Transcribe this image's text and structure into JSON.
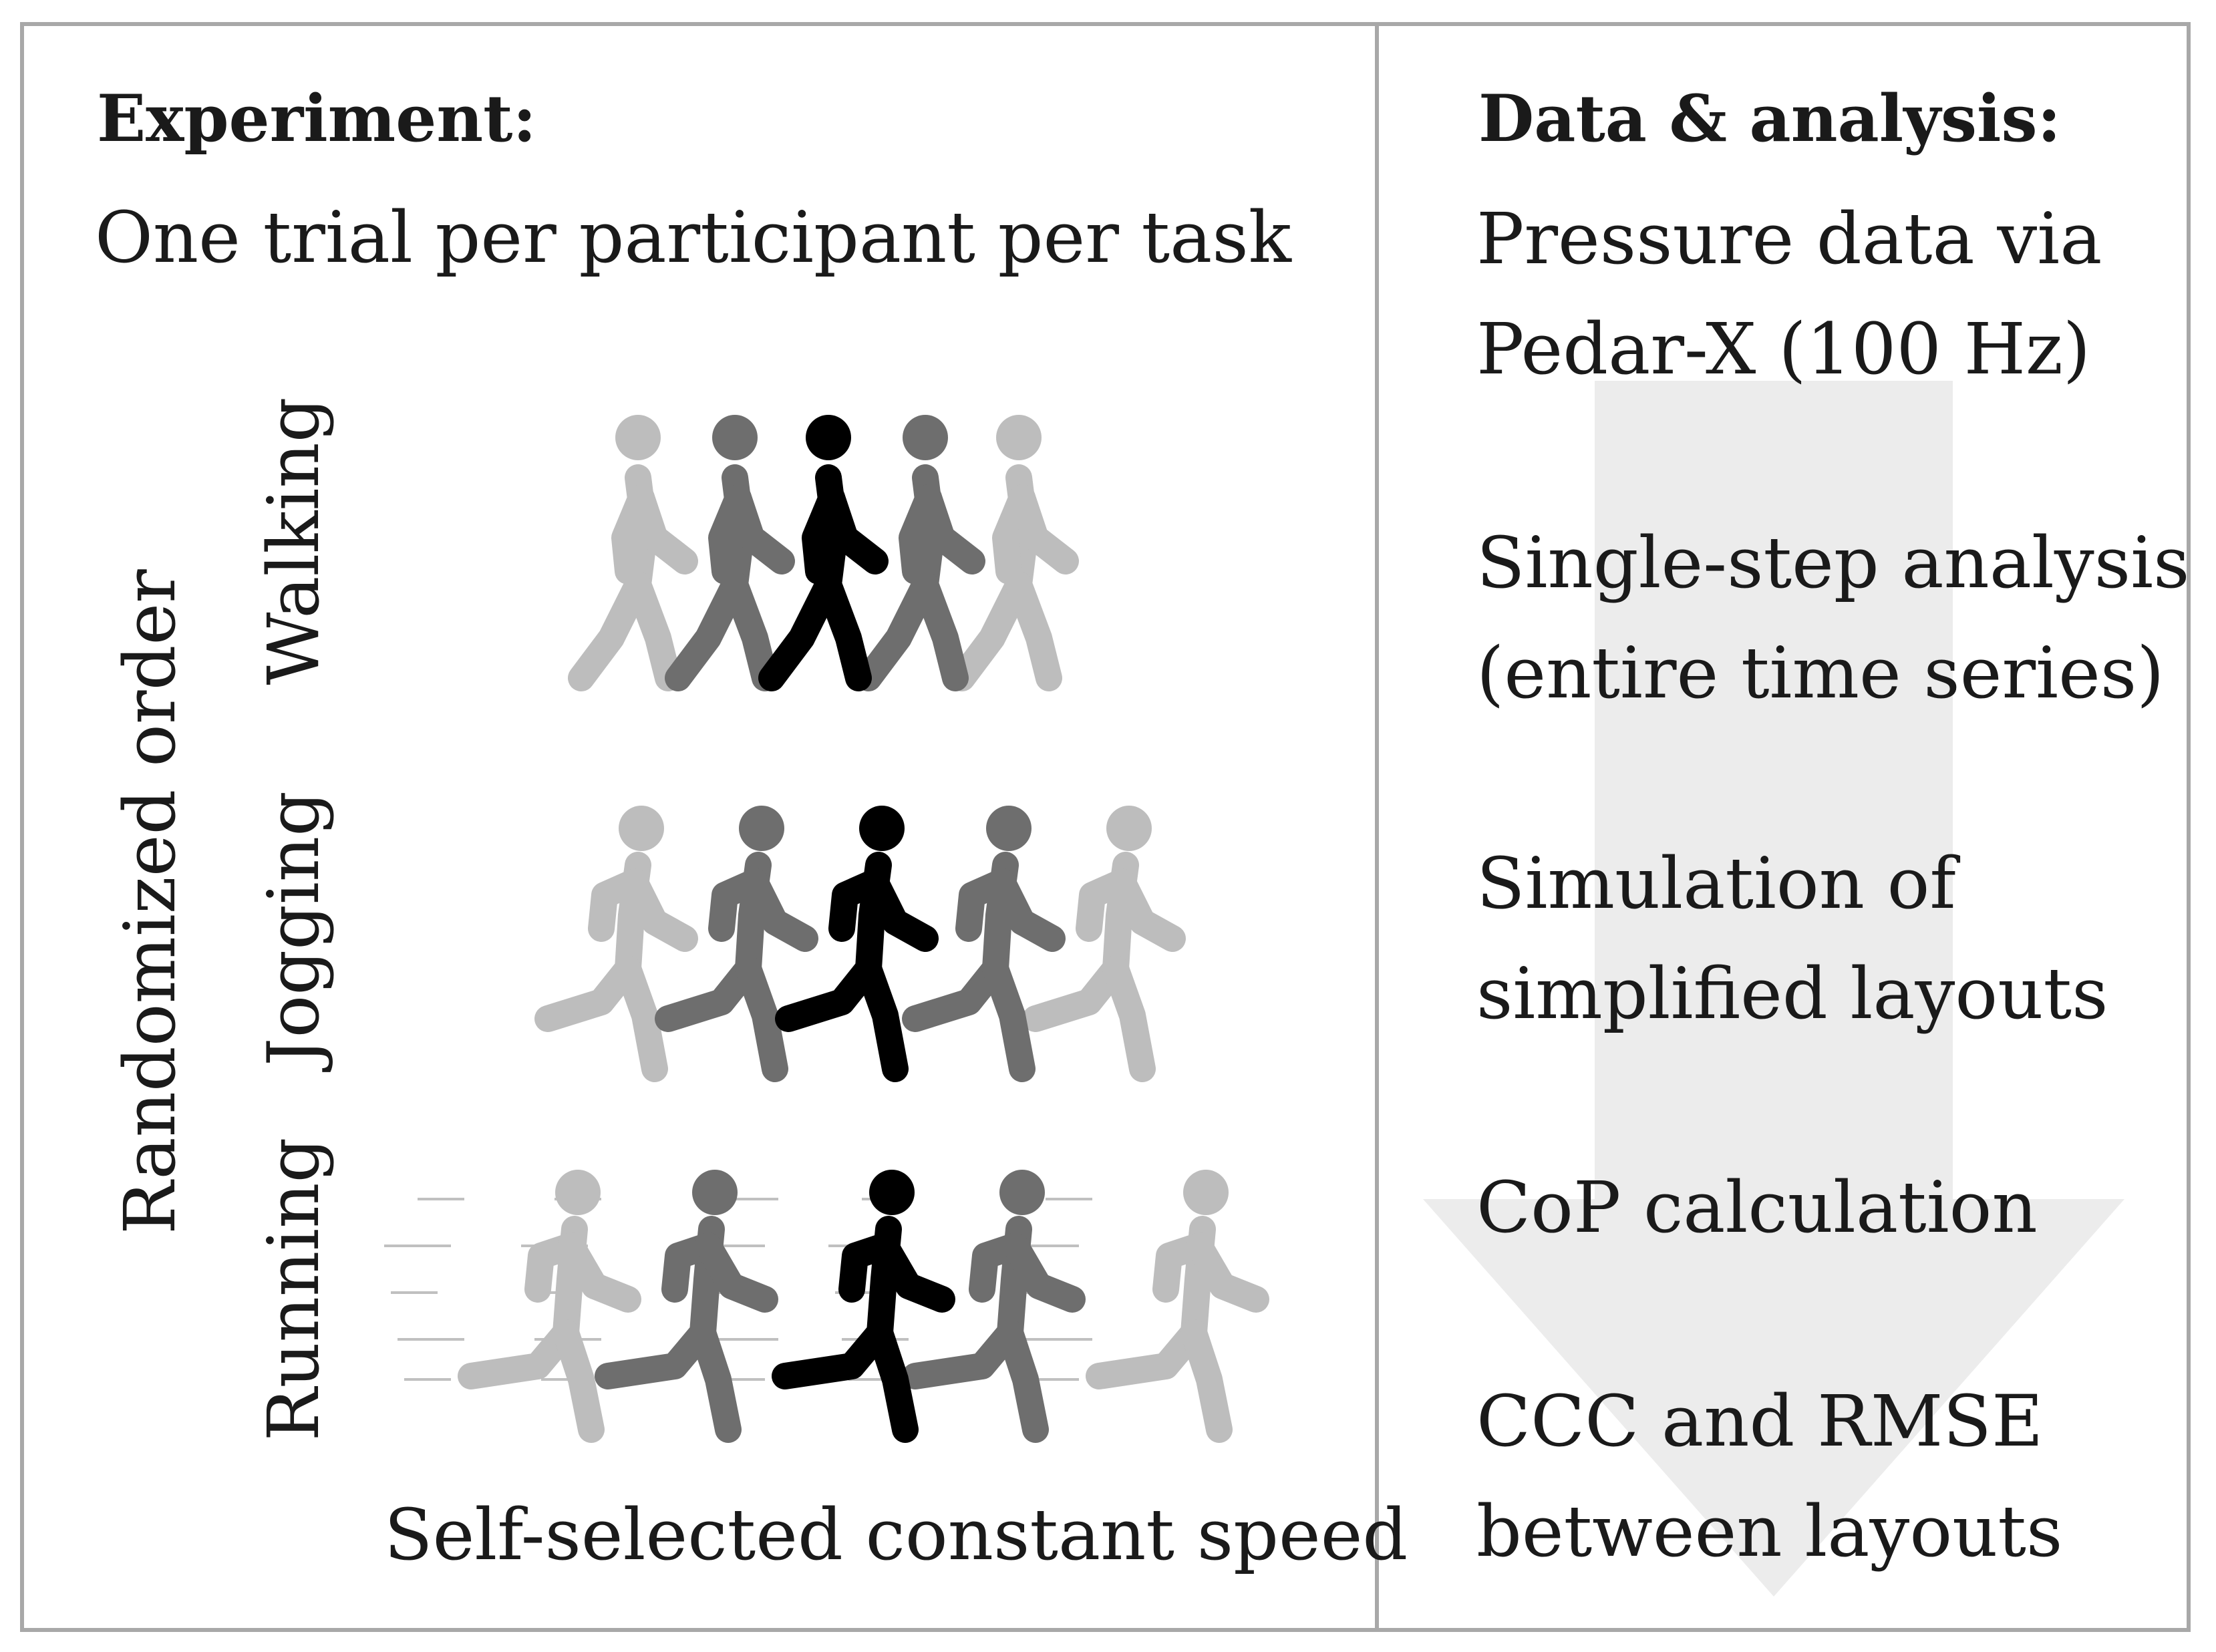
{
  "experiment": {
    "heading": "Experiment:",
    "subtitle": "One trial per participant per task",
    "side_label": "Randomized order",
    "tasks": [
      "Walking",
      "Jogging",
      "Running"
    ],
    "footer": "Self-selected constant speed"
  },
  "analysis": {
    "heading": "Data & analysis:",
    "steps": [
      [
        "Pressure data via",
        "Pedar-X (100 Hz)"
      ],
      [
        "Single-step analysis",
        "(entire time series)"
      ],
      [
        "Simulation of",
        "simplified layouts"
      ],
      [
        "CoP calculation"
      ],
      [
        "CCC and RMSE",
        "between layouts"
      ]
    ]
  },
  "colors": {
    "frame": "#a8a8a8",
    "arrow": "#ececec",
    "figure_shades": [
      "#bdbdbd",
      "#6e6e6e",
      "#000000",
      "#6e6e6e",
      "#bdbdbd"
    ],
    "speed_lines": "#c0c0c0"
  },
  "icons": [
    "walking-person-icon",
    "jogging-person-icon",
    "running-person-icon",
    "speed-lines-icon",
    "down-arrow-icon"
  ]
}
